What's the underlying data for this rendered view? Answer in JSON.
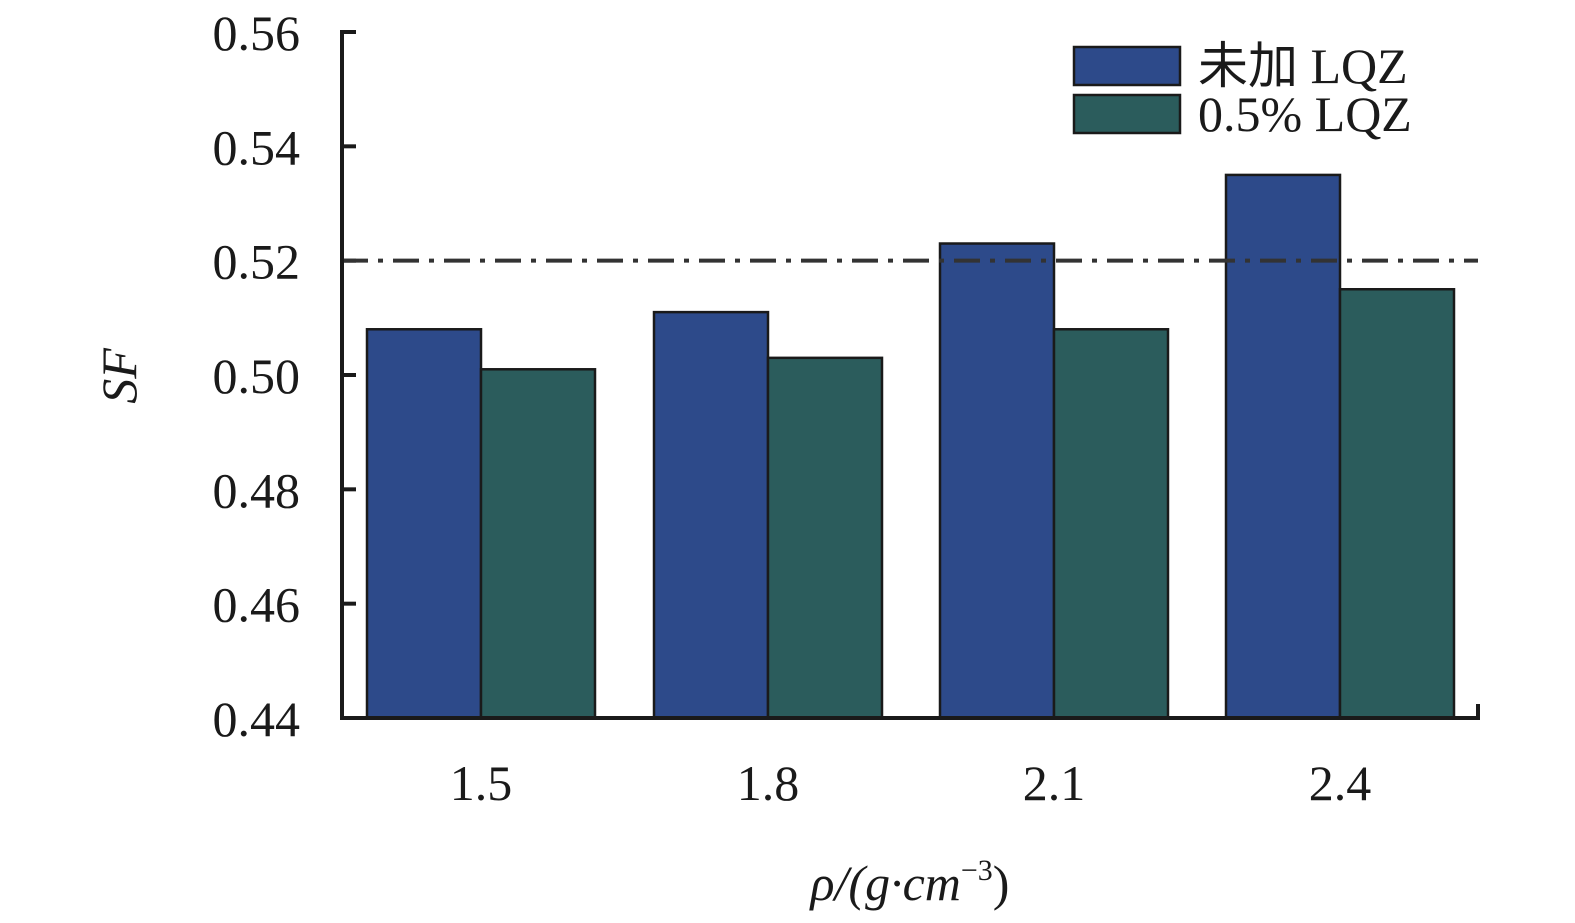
{
  "chart_data": {
    "type": "bar",
    "categories": [
      "1.5",
      "1.8",
      "2.1",
      "2.4"
    ],
    "series": [
      {
        "name": "未加 LQZ",
        "values": [
          0.508,
          0.511,
          0.523,
          0.535
        ],
        "color": "#2d4a8a"
      },
      {
        "name": "0.5% LQZ",
        "values": [
          0.501,
          0.503,
          0.508,
          0.515
        ],
        "color": "#2b5c5c"
      }
    ],
    "xlabel": "ρ/(g·cm⁻³)",
    "xlabel_main": "ρ/(g·cm",
    "xlabel_sup": "−3",
    "xlabel_close": ")",
    "ylabel": "SF",
    "ylim": [
      0.44,
      0.56
    ],
    "yticks": [
      0.44,
      0.46,
      0.48,
      0.5,
      0.52,
      0.54,
      0.56
    ],
    "ytick_labels": [
      "0.44",
      "0.46",
      "0.48",
      "0.50",
      "0.52",
      "0.54",
      "0.56"
    ],
    "reference_line": {
      "y": 0.52,
      "style": "dash-dot"
    },
    "grid": false,
    "legend_position": "top-right"
  }
}
